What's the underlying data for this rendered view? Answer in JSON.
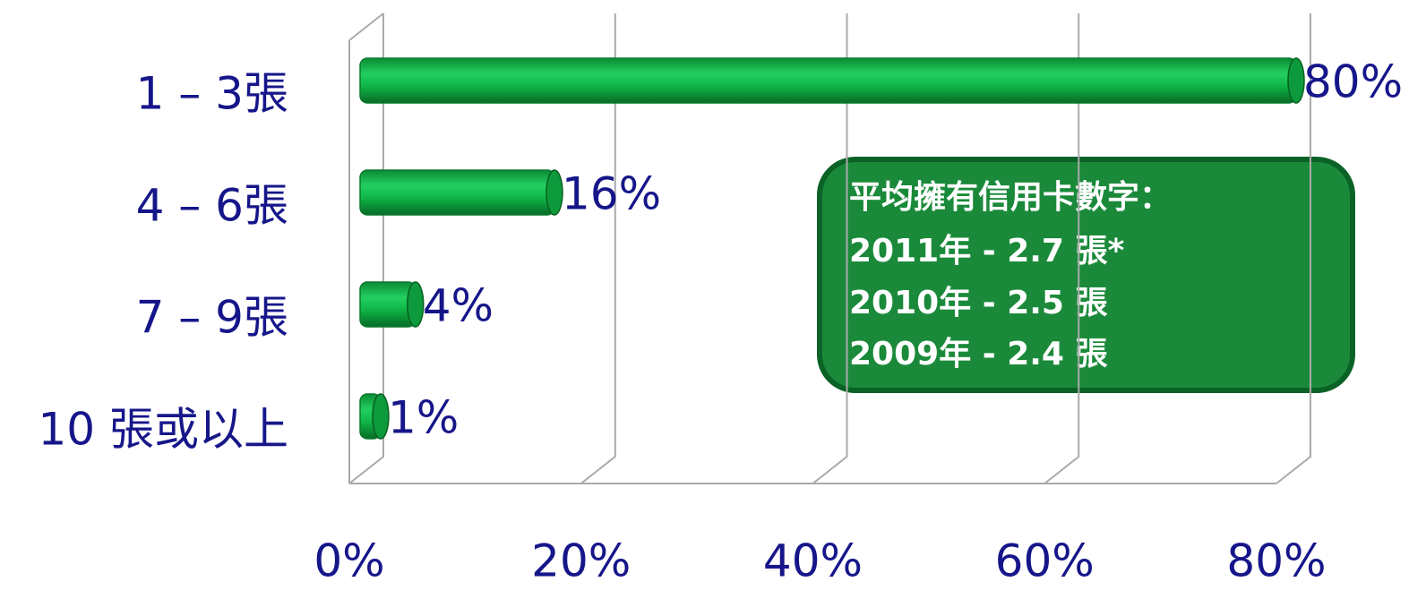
{
  "chart_data": {
    "type": "bar",
    "orientation": "horizontal",
    "categories": [
      "1 – 3張",
      "4 – 6張",
      "7 – 9張",
      "10 張或以上"
    ],
    "values": [
      80,
      16,
      4,
      1
    ],
    "value_labels": [
      "80%",
      "16%",
      "4%",
      "1%"
    ],
    "color": "#1fb850",
    "xlim": [
      0,
      80
    ],
    "xticks": [
      {
        "value": 0,
        "label": "0%"
      },
      {
        "value": 20,
        "label": "20%"
      },
      {
        "value": 40,
        "label": "40%"
      },
      {
        "value": 60,
        "label": "60%"
      },
      {
        "value": 80,
        "label": "80%"
      }
    ],
    "grid": true,
    "annotation": [
      "平均擁有信用卡數字：",
      "2011年 - 2.7 張*",
      "2010年 - 2.5 張",
      "2009年 - 2.4 張"
    ]
  }
}
